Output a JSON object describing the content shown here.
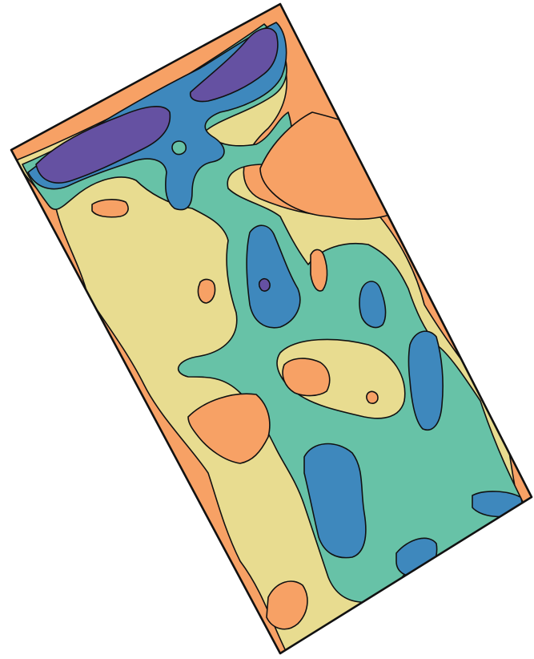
{
  "map": {
    "type": "zone-contour-map",
    "legend": "none",
    "zone_classes": [
      {
        "class": 1,
        "color": "#f7a165"
      },
      {
        "class": 2,
        "color": "#e8dc90"
      },
      {
        "class": 3,
        "color": "#67c2a7"
      },
      {
        "class": 4,
        "color": "#3e88bd"
      },
      {
        "class": 5,
        "color": "#6551a2"
      }
    ]
  }
}
